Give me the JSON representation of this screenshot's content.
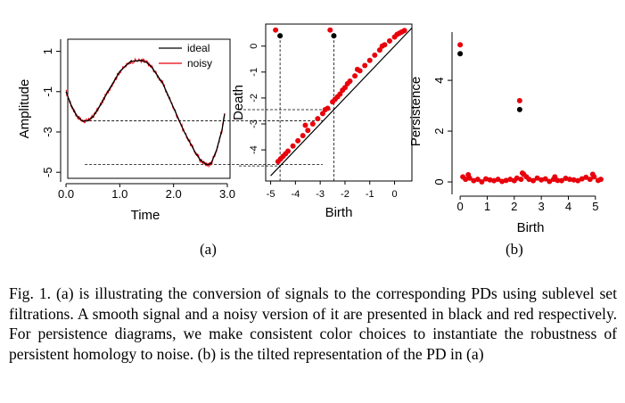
{
  "chart_data": [
    {
      "type": "line",
      "xlabel": "Time",
      "ylabel": "Amplitude",
      "xlim": [
        -0.1,
        3.05
      ],
      "ylim": [
        -5.3,
        1.6
      ],
      "x_ticks": [
        "0.0",
        "1.0",
        "2.0",
        "3.0"
      ],
      "y_ticks": [
        "1",
        "-1",
        "-3",
        "-5"
      ],
      "legend": {
        "position": "top-right",
        "entries": [
          "ideal",
          "noisy"
        ]
      },
      "series": [
        {
          "name": "ideal",
          "color": "#000000",
          "x": [
            0.0,
            0.1,
            0.2,
            0.3,
            0.4,
            0.5,
            0.6,
            0.8,
            1.0,
            1.2,
            1.4,
            1.5,
            1.6,
            1.8,
            2.0,
            2.2,
            2.4,
            2.5,
            2.6,
            2.65,
            2.7,
            2.8,
            2.9,
            2.95
          ],
          "y": [
            -1.0,
            -1.7,
            -2.2,
            -2.45,
            -2.45,
            -2.25,
            -1.85,
            -0.9,
            0.0,
            0.5,
            0.55,
            0.45,
            0.2,
            -0.6,
            -1.8,
            -3.0,
            -4.0,
            -4.4,
            -4.6,
            -4.62,
            -4.55,
            -3.9,
            -2.9,
            -2.1
          ]
        },
        {
          "name": "noisy",
          "color": "#e8000b",
          "x": [
            0.0,
            0.1,
            0.2,
            0.3,
            0.4,
            0.5,
            0.6,
            0.8,
            1.0,
            1.2,
            1.4,
            1.5,
            1.6,
            1.8,
            2.0,
            2.2,
            2.4,
            2.5,
            2.6,
            2.65,
            2.7,
            2.8,
            2.9,
            2.95
          ],
          "y": [
            -1.0,
            -1.7,
            -2.2,
            -2.45,
            -2.45,
            -2.25,
            -1.85,
            -0.9,
            0.0,
            0.5,
            0.55,
            0.45,
            0.2,
            -0.6,
            -1.8,
            -3.0,
            -4.0,
            -4.4,
            -4.6,
            -4.62,
            -4.55,
            -3.9,
            -2.9,
            -2.1
          ]
        }
      ],
      "annotations": [
        {
          "type": "dashed-hline",
          "y": -2.45
        },
        {
          "type": "dashed-hline",
          "y": -4.62
        }
      ]
    },
    {
      "type": "scatter",
      "xlabel": "Birth",
      "ylabel": "Death",
      "xlim": [
        -5.2,
        0.7
      ],
      "ylim": [
        -5.2,
        0.85
      ],
      "x_ticks": [
        "-5",
        "-4",
        "-3",
        "-2",
        "-1",
        "0"
      ],
      "y_ticks": [
        "0",
        "-1",
        "-2",
        "-3",
        "-4"
      ],
      "diagonal": true,
      "series": [
        {
          "name": "ideal",
          "color": "#000000",
          "x": [
            -4.62,
            -2.45
          ],
          "y": [
            0.4,
            0.4
          ]
        },
        {
          "name": "noisy",
          "color": "#e8000b",
          "x": [
            -4.8,
            -2.6,
            -4.7,
            -4.6,
            -4.5,
            -4.4,
            -4.3,
            -4.1,
            -3.9,
            -3.7,
            -3.5,
            -3.3,
            -3.1,
            -2.9,
            -2.7,
            -2.5,
            -2.4,
            -2.3,
            -2.2,
            -2.1,
            -2.0,
            -1.9,
            -1.8,
            -1.6,
            -1.4,
            -1.2,
            -1.0,
            -0.8,
            -0.6,
            -0.4,
            -0.2,
            0.0,
            0.1,
            0.2,
            0.3,
            0.4,
            -3.6,
            -2.8,
            -1.5,
            -0.5
          ],
          "y": [
            0.62,
            0.62,
            -4.45,
            -4.35,
            -4.25,
            -4.15,
            -4.05,
            -3.85,
            -3.65,
            -3.45,
            -3.25,
            -3.0,
            -2.8,
            -2.6,
            -2.4,
            -2.15,
            -2.05,
            -1.95,
            -1.85,
            -1.7,
            -1.6,
            -1.45,
            -1.35,
            -1.15,
            -0.95,
            -0.75,
            -0.55,
            -0.35,
            -0.15,
            0.05,
            0.2,
            0.35,
            0.45,
            0.5,
            0.55,
            0.6,
            -3.05,
            -2.45,
            -0.9,
            0.0
          ]
        }
      ],
      "annotations": [
        {
          "type": "dashed-vline",
          "x": -4.62
        },
        {
          "type": "dashed-vline",
          "x": -2.45
        },
        {
          "type": "dashed-hline",
          "y": -2.45
        },
        {
          "type": "dashed-hline",
          "y": -4.62
        }
      ]
    },
    {
      "type": "scatter",
      "xlabel": "Birth",
      "ylabel": "Persistence",
      "xlim": [
        -0.3,
        5.5
      ],
      "ylim": [
        -0.35,
        5.9
      ],
      "x_ticks": [
        "0",
        "1",
        "2",
        "3",
        "4",
        "5"
      ],
      "y_ticks": [
        "0",
        "2",
        "4"
      ],
      "series": [
        {
          "name": "ideal",
          "color": "#000000",
          "x": [
            0.0,
            2.2
          ],
          "y": [
            5.05,
            2.85
          ]
        },
        {
          "name": "noisy",
          "color": "#e8000b",
          "x": [
            0.0,
            2.2,
            0.1,
            0.2,
            0.35,
            0.5,
            0.65,
            0.8,
            0.95,
            1.1,
            1.25,
            1.4,
            1.55,
            1.7,
            1.85,
            2.0,
            2.1,
            2.25,
            2.35,
            2.45,
            2.55,
            2.7,
            2.85,
            3.0,
            3.15,
            3.3,
            3.45,
            3.6,
            3.75,
            3.9,
            4.05,
            4.2,
            4.35,
            4.5,
            4.65,
            4.8,
            4.95,
            5.1,
            5.2,
            0.3,
            2.3,
            3.5,
            4.9
          ],
          "y": [
            5.4,
            3.2,
            0.2,
            0.1,
            0.15,
            0.05,
            0.1,
            0.0,
            0.12,
            0.08,
            0.05,
            0.1,
            0.02,
            0.06,
            0.1,
            0.05,
            0.15,
            0.1,
            0.3,
            0.2,
            0.1,
            0.05,
            0.15,
            0.08,
            0.12,
            0.02,
            0.1,
            0.06,
            0.05,
            0.14,
            0.1,
            0.08,
            0.05,
            0.12,
            0.18,
            0.1,
            0.2,
            0.06,
            0.1,
            0.28,
            0.35,
            0.2,
            0.3
          ]
        }
      ]
    }
  ],
  "figure": {
    "panel_a_label": "(a)",
    "panel_b_label": "(b)"
  },
  "caption": {
    "text": "Fig. 1.  (a) is illustrating the conversion of signals to the corresponding PDs using sublevel set filtrations. A smooth signal and a noisy version of it are presented in black and red respectively. For persistence diagrams, we make consistent color choices to instantiate the robustness of persistent homology to noise. (b) is the tilted representation of the PD in (a)"
  }
}
